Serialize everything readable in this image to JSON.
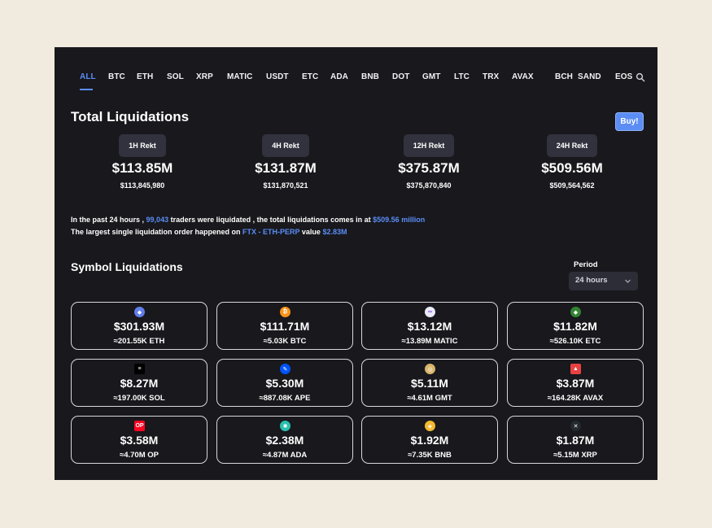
{
  "tabs": [
    "ALL",
    "BTC",
    "ETH",
    "SOL",
    "XRP",
    "MATIC",
    "USDT",
    "ETC",
    "ADA",
    "BNB",
    "DOT",
    "GMT",
    "LTC",
    "TRX",
    "AVAX",
    "BCH",
    "SAND",
    "EOS"
  ],
  "active_tab": "ALL",
  "total": {
    "title": "Total Liquidations",
    "buy_label": "Buy!",
    "stats": [
      {
        "label": "1H Rekt",
        "value": "$113.85M",
        "exact": "$113,845,980"
      },
      {
        "label": "4H Rekt",
        "value": "$131.87M",
        "exact": "$131,870,521"
      },
      {
        "label": "12H Rekt",
        "value": "$375.87M",
        "exact": "$375,870,840"
      },
      {
        "label": "24H Rekt",
        "value": "$509.56M",
        "exact": "$509,564,562"
      }
    ]
  },
  "summary": {
    "line1_prefix": "In the past 24 hours ,",
    "traders": "99,043",
    "line1_middle": "traders were liquidated , the total liquidations comes in at",
    "total_amount": "$509.56 million",
    "line2_prefix": "The largest single liquidation order happened on",
    "exchange_pair": "FTX - ETH-PERP",
    "line2_middle": "value",
    "largest_value": "$2.83M"
  },
  "symbols": {
    "title": "Symbol Liquidations",
    "period_label": "Period",
    "period_value": "24 hours",
    "cards": [
      {
        "amount": "$301.93M",
        "sub": "≈201.55K ETH",
        "icon": "eth-icon",
        "color": "#627eea",
        "glyph": "◆"
      },
      {
        "amount": "$111.71M",
        "sub": "≈5.03K BTC",
        "icon": "btc-icon",
        "color": "#f7931a",
        "glyph": "₿"
      },
      {
        "amount": "$13.12M",
        "sub": "≈13.89M MATIC",
        "icon": "matic-icon",
        "color": "#e8ecf7",
        "glyph": "∞"
      },
      {
        "amount": "$11.82M",
        "sub": "≈526.10K ETC",
        "icon": "etc-icon",
        "color": "#328332",
        "glyph": "◆"
      },
      {
        "amount": "$8.27M",
        "sub": "≈197.00K SOL",
        "icon": "sol-icon",
        "color": "#000000",
        "glyph": "≡"
      },
      {
        "amount": "$5.30M",
        "sub": "≈887.08K APE",
        "icon": "ape-icon",
        "color": "#0054f9",
        "glyph": "✎"
      },
      {
        "amount": "$5.11M",
        "sub": "≈4.61M GMT",
        "icon": "gmt-icon",
        "color": "#d9b56a",
        "glyph": "◎"
      },
      {
        "amount": "$3.87M",
        "sub": "≈164.28K AVAX",
        "icon": "avax-icon",
        "color": "#e84142",
        "glyph": "▲"
      },
      {
        "amount": "$3.58M",
        "sub": "≈4.70M OP",
        "icon": "op-icon",
        "color": "#ff0420",
        "glyph": "OP"
      },
      {
        "amount": "$2.38M",
        "sub": "≈4.87M ADA",
        "icon": "ada-icon",
        "color": "#2bbfae",
        "glyph": "✺"
      },
      {
        "amount": "$1.92M",
        "sub": "≈7.35K BNB",
        "icon": "bnb-icon",
        "color": "#f3ba2f",
        "glyph": "◈"
      },
      {
        "amount": "$1.87M",
        "sub": "≈5.15M XRP",
        "icon": "xrp-icon",
        "color": "#23292f",
        "glyph": "✕"
      }
    ]
  }
}
